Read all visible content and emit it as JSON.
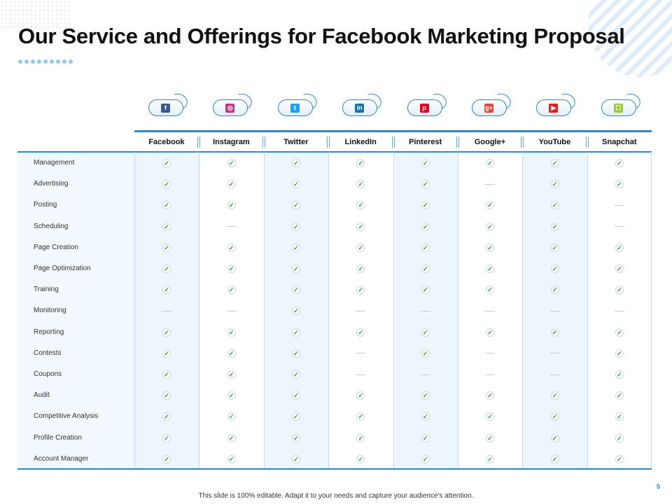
{
  "slide": {
    "title": "Our Service and Offerings for Facebook Marketing Proposal",
    "footer": "This slide is 100% editable. Adapt it to your needs and capture your audience's attention.",
    "page_number": "5"
  },
  "colors": {
    "accent": "#2e86cf",
    "check": "#2a9a3a",
    "light_column": "#eef6fd"
  },
  "table": {
    "platforms": [
      {
        "name": "Facebook",
        "icon": "facebook-icon",
        "glyph": "f",
        "color": "#3b5998"
      },
      {
        "name": "Instagram",
        "icon": "instagram-icon",
        "glyph": "◎",
        "color": "#c13584"
      },
      {
        "name": "Twitter",
        "icon": "twitter-icon",
        "glyph": "t",
        "color": "#1da1f2"
      },
      {
        "name": "LinkedIn",
        "icon": "linkedin-icon",
        "glyph": "in",
        "color": "#0e76a8"
      },
      {
        "name": "Pinterest",
        "icon": "pinterest-icon",
        "glyph": "p",
        "color": "#e60023"
      },
      {
        "name": "Google+",
        "icon": "google-plus-icon",
        "glyph": "g+",
        "color": "#dd4b39"
      },
      {
        "name": "YouTube",
        "icon": "youtube-icon",
        "glyph": "▶",
        "color": "#e62117"
      },
      {
        "name": "Snapchat",
        "icon": "snapchat-icon",
        "glyph": "☐",
        "color": "#9bc53d"
      }
    ],
    "rows": [
      {
        "label": "Management",
        "marks": [
          1,
          1,
          1,
          1,
          1,
          1,
          1,
          1
        ]
      },
      {
        "label": "Advertising",
        "marks": [
          1,
          1,
          1,
          1,
          1,
          0,
          1,
          1
        ]
      },
      {
        "label": "Posting",
        "marks": [
          1,
          1,
          1,
          1,
          1,
          1,
          1,
          0
        ]
      },
      {
        "label": "Scheduling",
        "marks": [
          1,
          0,
          1,
          1,
          1,
          1,
          1,
          0
        ]
      },
      {
        "label": "Page Creation",
        "marks": [
          1,
          1,
          1,
          1,
          1,
          1,
          1,
          1
        ]
      },
      {
        "label": "Page Optimization",
        "marks": [
          1,
          1,
          1,
          1,
          1,
          1,
          1,
          1
        ]
      },
      {
        "label": "Training",
        "marks": [
          1,
          1,
          1,
          1,
          1,
          1,
          1,
          1
        ]
      },
      {
        "label": "Monitoring",
        "marks": [
          0,
          0,
          1,
          0,
          0,
          0,
          0,
          0
        ]
      },
      {
        "label": "Reporting",
        "marks": [
          1,
          1,
          1,
          1,
          1,
          1,
          1,
          1
        ]
      },
      {
        "label": "Contests",
        "marks": [
          1,
          1,
          1,
          0,
          1,
          0,
          0,
          1
        ]
      },
      {
        "label": "Coupons",
        "marks": [
          1,
          1,
          1,
          0,
          0,
          0,
          0,
          1
        ]
      },
      {
        "label": "Audit",
        "marks": [
          1,
          1,
          1,
          1,
          1,
          1,
          1,
          1
        ]
      },
      {
        "label": "Competitive Analysis",
        "marks": [
          1,
          1,
          1,
          1,
          1,
          1,
          1,
          1
        ]
      },
      {
        "label": "Profile Creation",
        "marks": [
          1,
          1,
          1,
          1,
          1,
          1,
          1,
          1
        ]
      },
      {
        "label": "Account Manager",
        "marks": [
          1,
          1,
          1,
          1,
          1,
          1,
          1,
          1
        ]
      }
    ]
  }
}
